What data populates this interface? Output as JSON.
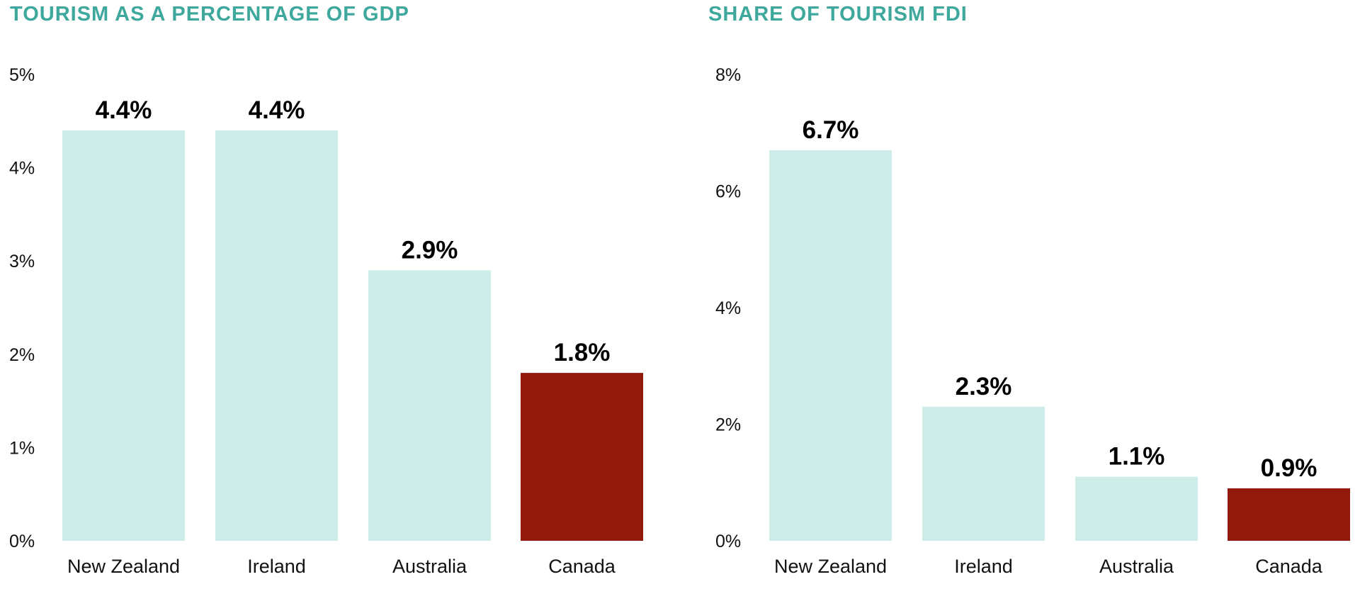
{
  "colors": {
    "title": "#3ea89c",
    "bar": "#cfede8",
    "highlight": "#921a0d",
    "text": "#111111",
    "value_text": "#000000"
  },
  "chart_data": [
    {
      "type": "bar",
      "title": "TOURISM AS A PERCENTAGE OF GDP",
      "categories": [
        "New Zealand",
        "Ireland",
        "Australia",
        "Canada"
      ],
      "values": [
        4.4,
        4.4,
        2.9,
        1.8
      ],
      "value_labels": [
        "4.4%",
        "4.4%",
        "2.9%",
        "1.8%"
      ],
      "highlight_category": "Canada",
      "ylim": [
        0,
        5
      ],
      "yticks": [
        0,
        1,
        2,
        3,
        4,
        5
      ],
      "ytick_labels": [
        "0%",
        "1%",
        "2%",
        "3%",
        "4%",
        "5%"
      ],
      "xlabel": "",
      "ylabel": "",
      "grid": false,
      "legend": "none"
    },
    {
      "type": "bar",
      "title": "SHARE OF TOURISM FDI",
      "categories": [
        "New Zealand",
        "Ireland",
        "Australia",
        "Canada"
      ],
      "values": [
        6.7,
        2.3,
        1.1,
        0.9
      ],
      "value_labels": [
        "6.7%",
        "2.3%",
        "1.1%",
        "0.9%"
      ],
      "highlight_category": "Canada",
      "ylim": [
        0,
        8
      ],
      "yticks": [
        0,
        2,
        4,
        6,
        8
      ],
      "ytick_labels": [
        "0%",
        "2%",
        "4%",
        "6%",
        "8%"
      ],
      "xlabel": "",
      "ylabel": "",
      "grid": false,
      "legend": "none"
    }
  ]
}
